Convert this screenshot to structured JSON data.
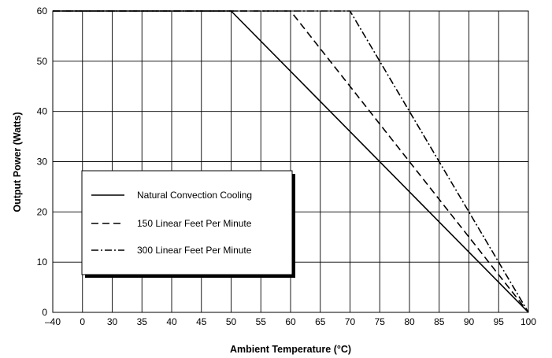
{
  "chart_data": {
    "type": "line",
    "title": "",
    "xlabel": "Ambient Temperature (°C)",
    "ylabel": "Output Power (Watts)",
    "x_ticks": [
      "–40",
      "0",
      "30",
      "35",
      "40",
      "45",
      "50",
      "55",
      "60",
      "65",
      "70",
      "75",
      "80",
      "85",
      "90",
      "95",
      "100"
    ],
    "y_ticks": [
      "0",
      "10",
      "20",
      "30",
      "40",
      "50",
      "60"
    ],
    "ylim": [
      0,
      60
    ],
    "grid": true,
    "legend_position": "lower-left",
    "series": [
      {
        "name": "Natural Convection Cooling",
        "style": "solid",
        "points": [
          {
            "x": -40,
            "y": 60
          },
          {
            "x": 50,
            "y": 60
          },
          {
            "x": 100,
            "y": 0
          }
        ]
      },
      {
        "name": "150 Linear Feet Per Minute",
        "style": "dashed",
        "points": [
          {
            "x": -40,
            "y": 60
          },
          {
            "x": 60,
            "y": 60
          },
          {
            "x": 100,
            "y": 0
          }
        ]
      },
      {
        "name": "300 Linear Feet Per Minute",
        "style": "dash-dot",
        "points": [
          {
            "x": -40,
            "y": 60
          },
          {
            "x": 70,
            "y": 60
          },
          {
            "x": 100,
            "y": 0
          }
        ]
      }
    ]
  }
}
